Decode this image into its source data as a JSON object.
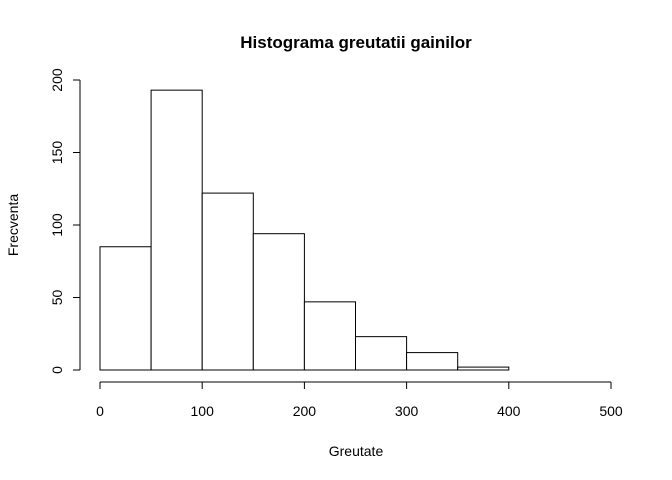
{
  "chart_data": {
    "type": "bar",
    "title": "Histograma greutatii gainilor",
    "xlabel": "Greutate",
    "ylabel": "Frecventa",
    "bins": [
      [
        0,
        50
      ],
      [
        50,
        100
      ],
      [
        100,
        150
      ],
      [
        150,
        200
      ],
      [
        200,
        250
      ],
      [
        250,
        300
      ],
      [
        300,
        350
      ],
      [
        350,
        400
      ]
    ],
    "values": [
      85,
      193,
      122,
      94,
      47,
      23,
      12,
      2
    ],
    "xlim": [
      0,
      500
    ],
    "ylim": [
      0,
      200
    ],
    "xticks": [
      0,
      100,
      200,
      300,
      400,
      500
    ],
    "yticks": [
      0,
      50,
      100,
      150,
      200
    ],
    "grid": false,
    "colors": {
      "bar_fill": "#ffffff",
      "bar_stroke": "#000000"
    }
  }
}
